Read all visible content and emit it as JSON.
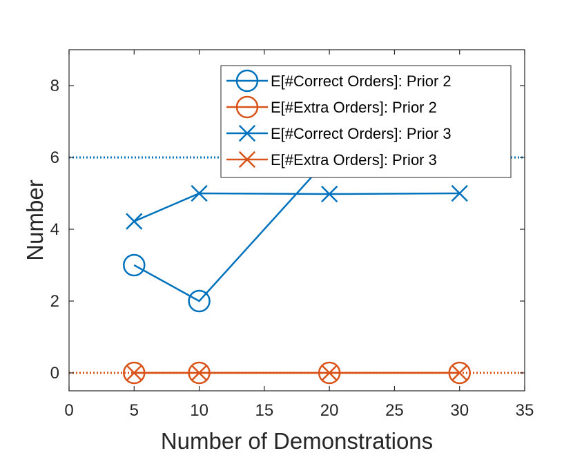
{
  "chart_data": {
    "type": "line",
    "xlabel": "Number of Demonstrations",
    "ylabel": "Number",
    "xlim": [
      0,
      35
    ],
    "ylim": [
      -0.5,
      9
    ],
    "xticks": [
      0,
      5,
      10,
      15,
      20,
      25,
      30,
      35
    ],
    "yticks": [
      0,
      2,
      4,
      6,
      8
    ],
    "grid": false,
    "legend_position": "top-right",
    "colors": {
      "blue": "#0072BD",
      "orange": "#D95319"
    },
    "series": [
      {
        "name": "E[#Correct Orders]: Prior 2",
        "marker": "circle",
        "color": "#0072BD",
        "x": [
          5,
          10,
          20,
          30
        ],
        "y": [
          3,
          2,
          6,
          6
        ]
      },
      {
        "name": "E[#Extra Orders]: Prior 2",
        "marker": "circle",
        "color": "#D95319",
        "x": [
          5,
          10,
          20,
          30
        ],
        "y": [
          0,
          0,
          0,
          0
        ]
      },
      {
        "name": "E[#Correct Orders]: Prior 3",
        "marker": "cross",
        "color": "#0072BD",
        "x": [
          5,
          10,
          20,
          30
        ],
        "y": [
          4.22,
          5.0,
          4.98,
          5.0
        ]
      },
      {
        "name": "E[#Extra Orders]: Prior 3",
        "marker": "cross",
        "color": "#D95319",
        "x": [
          5,
          10,
          20,
          30
        ],
        "y": [
          0,
          0,
          0,
          0
        ]
      }
    ],
    "reference_lines": [
      {
        "y": 6,
        "style": "dotted",
        "color": "#0072BD"
      },
      {
        "y": 0,
        "style": "dotted",
        "color": "#D95319"
      }
    ]
  }
}
